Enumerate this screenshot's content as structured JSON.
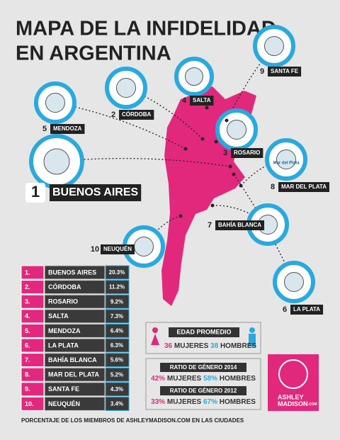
{
  "header": {
    "title_lines": [
      "MAPA DE LA INFIDELIDAD",
      "EN ARGENTINA"
    ]
  },
  "map": {
    "cities": [
      {
        "rank": 1,
        "name": "BUENOS AIRES"
      },
      {
        "rank": 2,
        "name": "CÓRDOBA"
      },
      {
        "rank": 3,
        "name": "ROSARIO"
      },
      {
        "rank": 4,
        "name": "SALTA"
      },
      {
        "rank": 5,
        "name": "MENDOZA"
      },
      {
        "rank": 6,
        "name": "LA PLATA"
      },
      {
        "rank": 7,
        "name": "BAHÍA BLANCA"
      },
      {
        "rank": 8,
        "name": "MAR DEL PLATA"
      },
      {
        "rank": 9,
        "name": "SANTA FE"
      },
      {
        "rank": 10,
        "name": "NEUQUÉN"
      }
    ],
    "badge_text": "Mar del Plata"
  },
  "table": {
    "rows": [
      [
        "1.",
        "BUENOS AIRES",
        "20.3%"
      ],
      [
        "2.",
        "CÓRDOBA",
        "11.2%"
      ],
      [
        "3.",
        "ROSARIO",
        "9.2%"
      ],
      [
        "4.",
        "SALTA",
        "7.3%"
      ],
      [
        "5.",
        "MENDOZA",
        "6.4%"
      ],
      [
        "6.",
        "LA PLATA",
        "6.3%"
      ],
      [
        "7.",
        "BAHÍA BLANCA",
        "5.6%"
      ],
      [
        "8.",
        "MAR DEL PLATA",
        "5.2%"
      ],
      [
        "9.",
        "SANTA FE",
        "4.3%"
      ],
      [
        "10.",
        "NEUQUÉN",
        "3.4%"
      ]
    ],
    "footnote": "PORCENTAJE DE LOS MIEMBROS DE ASHLEYMADISON.COM EN LAS CIUDADES"
  },
  "stats": {
    "age": {
      "title": "EDAD PROMEDIO",
      "women": "36",
      "women_label": "MUJERES",
      "men": "38",
      "men_label": "HOMBRES"
    },
    "ratios": [
      {
        "title": "RATIO DE GÉNERO 2014",
        "women": "42%",
        "women_label": "MUJERES",
        "men": "58%",
        "men_label": "HOMBRES"
      },
      {
        "title": "RATIO DE GÉNERO 2012",
        "women": "33%",
        "women_label": "MUJERES",
        "men": "67%",
        "men_label": "HOMBRES"
      }
    ]
  },
  "logo": {
    "line1": "ASHLEY",
    "line2": "MADISON",
    "suffix": ".COM"
  }
}
